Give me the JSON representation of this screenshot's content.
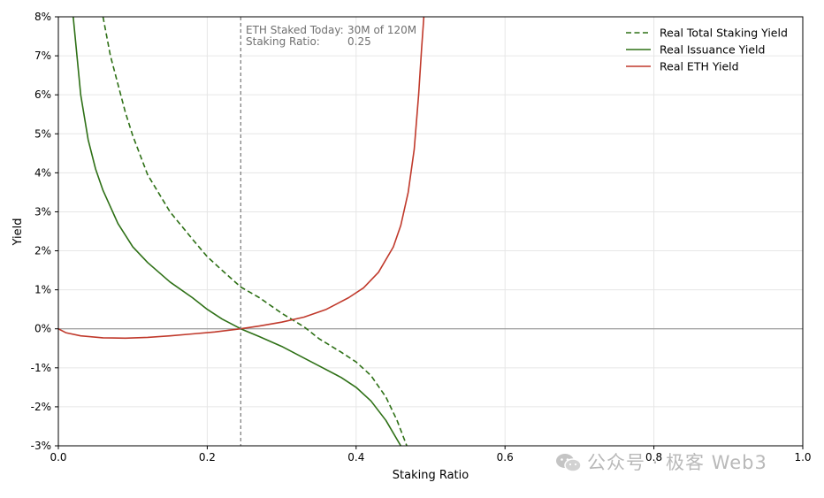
{
  "chart_data": {
    "type": "line",
    "title": "",
    "xlabel": "Staking Ratio",
    "ylabel": "Yield",
    "xlim": [
      0.0,
      1.0
    ],
    "ylim": [
      -3,
      8
    ],
    "xticks": [
      0.0,
      0.2,
      0.4,
      0.6,
      0.8,
      1.0
    ],
    "xtick_labels": [
      "0.0",
      "0.2",
      "0.4",
      "0.6",
      "0.8",
      "1.0"
    ],
    "yticks": [
      -3,
      -2,
      -1,
      0,
      1,
      2,
      3,
      4,
      5,
      6,
      7,
      8
    ],
    "ytick_labels": [
      "-3%",
      "-2%",
      "-1%",
      "0%",
      "1%",
      "2%",
      "3%",
      "4%",
      "5%",
      "6%",
      "7%",
      "8%"
    ],
    "grid": true,
    "legend_position": "top-right",
    "annotation": {
      "line1_label": "ETH Staked Today:",
      "line1_value": "30M of 120M",
      "line2_label": "Staking Ratio:",
      "line2_value": "0.25",
      "x": 0.245
    },
    "series": [
      {
        "name": "Real Total Staking Yield",
        "color": "#2e7016",
        "style": "dashed",
        "points": [
          [
            0.06,
            8.0
          ],
          [
            0.07,
            7.0
          ],
          [
            0.09,
            5.55
          ],
          [
            0.1,
            4.95
          ],
          [
            0.12,
            3.95
          ],
          [
            0.15,
            3.0
          ],
          [
            0.18,
            2.3
          ],
          [
            0.2,
            1.85
          ],
          [
            0.22,
            1.5
          ],
          [
            0.245,
            1.07
          ],
          [
            0.27,
            0.8
          ],
          [
            0.3,
            0.4
          ],
          [
            0.33,
            0.05
          ],
          [
            0.35,
            -0.25
          ],
          [
            0.38,
            -0.6
          ],
          [
            0.4,
            -0.85
          ],
          [
            0.42,
            -1.2
          ],
          [
            0.44,
            -1.75
          ],
          [
            0.455,
            -2.35
          ],
          [
            0.468,
            -3.0
          ]
        ]
      },
      {
        "name": "Real Issuance Yield",
        "color": "#2e7016",
        "style": "solid",
        "points": [
          [
            0.02,
            8.0
          ],
          [
            0.03,
            6.0
          ],
          [
            0.04,
            4.85
          ],
          [
            0.05,
            4.1
          ],
          [
            0.06,
            3.55
          ],
          [
            0.08,
            2.7
          ],
          [
            0.1,
            2.1
          ],
          [
            0.12,
            1.7
          ],
          [
            0.15,
            1.2
          ],
          [
            0.18,
            0.8
          ],
          [
            0.2,
            0.5
          ],
          [
            0.22,
            0.25
          ],
          [
            0.245,
            0.0
          ],
          [
            0.27,
            -0.2
          ],
          [
            0.3,
            -0.45
          ],
          [
            0.33,
            -0.75
          ],
          [
            0.35,
            -0.95
          ],
          [
            0.38,
            -1.25
          ],
          [
            0.4,
            -1.5
          ],
          [
            0.42,
            -1.85
          ],
          [
            0.44,
            -2.35
          ],
          [
            0.46,
            -3.0
          ]
        ]
      },
      {
        "name": "Real ETH Yield",
        "color": "#c0392b",
        "style": "solid",
        "points": [
          [
            0.0,
            0.0
          ],
          [
            0.01,
            -0.1
          ],
          [
            0.03,
            -0.18
          ],
          [
            0.06,
            -0.23
          ],
          [
            0.09,
            -0.24
          ],
          [
            0.12,
            -0.22
          ],
          [
            0.15,
            -0.18
          ],
          [
            0.18,
            -0.13
          ],
          [
            0.21,
            -0.08
          ],
          [
            0.245,
            0.0
          ],
          [
            0.27,
            0.07
          ],
          [
            0.3,
            0.17
          ],
          [
            0.33,
            0.3
          ],
          [
            0.36,
            0.5
          ],
          [
            0.39,
            0.8
          ],
          [
            0.41,
            1.05
          ],
          [
            0.43,
            1.45
          ],
          [
            0.45,
            2.1
          ],
          [
            0.46,
            2.65
          ],
          [
            0.47,
            3.5
          ],
          [
            0.478,
            4.6
          ],
          [
            0.484,
            6.0
          ],
          [
            0.488,
            7.2
          ],
          [
            0.491,
            8.0
          ]
        ]
      }
    ]
  },
  "watermark": {
    "text": "公众号 · 极客 Web3",
    "icon": "wechat-icon"
  }
}
